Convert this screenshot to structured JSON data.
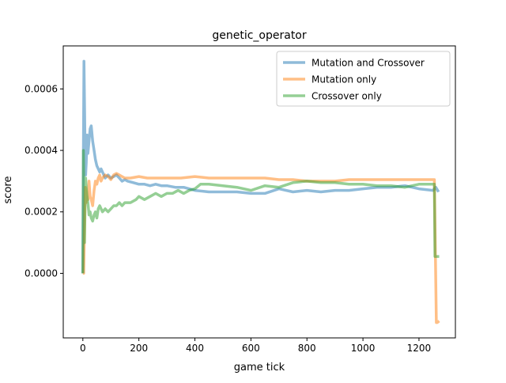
{
  "chart_data": {
    "type": "line",
    "title": "genetic_operator",
    "xlabel": "game tick",
    "ylabel": "score",
    "xlim": [
      -70,
      1330
    ],
    "ylim": [
      -0.00021,
      0.00074
    ],
    "x_ticks": [
      0,
      200,
      400,
      600,
      800,
      1000,
      1200
    ],
    "x_tick_labels": [
      "0",
      "200",
      "400",
      "600",
      "800",
      "1000",
      "1200"
    ],
    "y_ticks": [
      0.0,
      0.0002,
      0.0004,
      0.0006
    ],
    "y_tick_labels": [
      "0.0000",
      "0.0002",
      "0.0004",
      "0.0006"
    ],
    "grid": false,
    "legend_position": "top-right",
    "series": [
      {
        "name": "Mutation and Crossover",
        "color": "#1f77b4",
        "x": [
          0,
          2,
          4,
          6,
          8,
          10,
          12,
          15,
          18,
          22,
          26,
          30,
          35,
          40,
          45,
          50,
          55,
          60,
          65,
          70,
          80,
          90,
          100,
          110,
          120,
          130,
          140,
          150,
          160,
          180,
          200,
          220,
          240,
          260,
          280,
          300,
          330,
          360,
          400,
          450,
          500,
          550,
          600,
          650,
          700,
          750,
          800,
          850,
          900,
          950,
          1000,
          1050,
          1100,
          1150,
          1200,
          1250,
          1260,
          1270
        ],
        "values": [
          0.0,
          0.0004,
          0.00069,
          0.00055,
          0.0004,
          0.00032,
          0.00036,
          0.00045,
          0.00039,
          0.00043,
          0.00047,
          0.00048,
          0.00043,
          0.0004,
          0.00037,
          0.00035,
          0.00034,
          0.00033,
          0.00034,
          0.00033,
          0.00031,
          0.00032,
          0.00031,
          0.000315,
          0.00032,
          0.00031,
          0.0003,
          0.000305,
          0.0003,
          0.000295,
          0.00029,
          0.00029,
          0.000285,
          0.00029,
          0.000285,
          0.000285,
          0.00028,
          0.00028,
          0.00027,
          0.000265,
          0.000265,
          0.000265,
          0.00026,
          0.00026,
          0.000275,
          0.000265,
          0.00027,
          0.000265,
          0.00027,
          0.00027,
          0.000275,
          0.00028,
          0.00028,
          0.000285,
          0.000275,
          0.00027,
          0.00028,
          0.000265
        ]
      },
      {
        "name": "Mutation only",
        "color": "#ff7f0e",
        "x": [
          0,
          3,
          6,
          9,
          12,
          15,
          18,
          22,
          26,
          30,
          35,
          40,
          45,
          50,
          55,
          60,
          65,
          70,
          80,
          90,
          100,
          110,
          120,
          130,
          140,
          150,
          170,
          200,
          230,
          260,
          300,
          350,
          400,
          450,
          500,
          550,
          600,
          650,
          700,
          750,
          800,
          850,
          900,
          950,
          1000,
          1050,
          1100,
          1150,
          1200,
          1255,
          1258,
          1262,
          1265,
          1272
        ],
        "values": [
          0.0,
          0.0,
          0.00015,
          0.00028,
          0.00023,
          0.00026,
          0.00024,
          0.0003,
          0.00025,
          0.00024,
          0.00022,
          0.00027,
          0.0003,
          0.00029,
          0.00031,
          0.00032,
          0.0003,
          0.00031,
          0.00032,
          0.000315,
          0.000305,
          0.00032,
          0.000325,
          0.00032,
          0.000315,
          0.00031,
          0.00031,
          0.000315,
          0.00031,
          0.00031,
          0.00031,
          0.00031,
          0.000315,
          0.00031,
          0.00031,
          0.00031,
          0.00031,
          0.00031,
          0.000305,
          0.000305,
          0.0003,
          0.0003,
          0.0003,
          0.000305,
          0.000305,
          0.000305,
          0.000305,
          0.000305,
          0.000305,
          0.000305,
          0.0001,
          -0.00016,
          -0.00016,
          -0.000155
        ]
      },
      {
        "name": "Crossover only",
        "color": "#2ca02c",
        "x": [
          0,
          2,
          4,
          6,
          8,
          10,
          12,
          15,
          18,
          22,
          26,
          30,
          35,
          40,
          45,
          50,
          55,
          60,
          70,
          80,
          90,
          100,
          110,
          120,
          130,
          140,
          150,
          170,
          190,
          200,
          220,
          240,
          260,
          280,
          300,
          320,
          340,
          360,
          380,
          400,
          420,
          450,
          500,
          550,
          600,
          650,
          700,
          750,
          800,
          850,
          900,
          950,
          1000,
          1050,
          1100,
          1150,
          1200,
          1255,
          1257,
          1262,
          1272
        ],
        "values": [
          0.0,
          0.0004,
          0.00026,
          0.0001,
          0.00023,
          0.00031,
          0.00028,
          0.00025,
          0.00023,
          0.00019,
          0.0002,
          0.00018,
          0.00017,
          0.00019,
          0.0002,
          0.00018,
          0.00021,
          0.00022,
          0.0002,
          0.00021,
          0.0002,
          0.00021,
          0.00022,
          0.00022,
          0.00023,
          0.00022,
          0.00023,
          0.00023,
          0.00024,
          0.00025,
          0.00024,
          0.00025,
          0.00026,
          0.00025,
          0.00026,
          0.00026,
          0.00027,
          0.00026,
          0.00027,
          0.000275,
          0.00029,
          0.00029,
          0.000285,
          0.00028,
          0.00027,
          0.000285,
          0.00028,
          0.000295,
          0.0003,
          0.000295,
          0.000295,
          0.00029,
          0.00029,
          0.000285,
          0.000285,
          0.00028,
          0.00029,
          0.00029,
          5.5e-05,
          5.5e-05,
          5.5e-05
        ]
      }
    ]
  }
}
